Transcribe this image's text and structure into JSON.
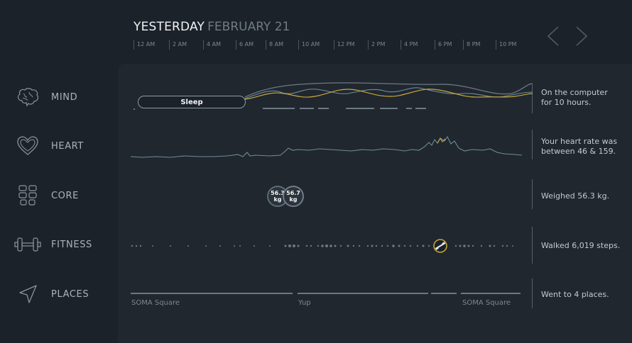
{
  "header": {
    "day_label": "YESTERDAY",
    "date_label": "FEBRUARY 21",
    "hours": [
      "12 AM",
      "2 AM",
      "4 AM",
      "6 AM",
      "8 AM",
      "10 AM",
      "12 PM",
      "2 PM",
      "4 PM",
      "6 PM",
      "8 PM",
      "10 PM"
    ]
  },
  "sidebar": {
    "items": [
      {
        "label": "MIND",
        "icon": "brain-icon"
      },
      {
        "label": "HEART",
        "icon": "heart-icon"
      },
      {
        "label": "CORE",
        "icon": "core-grid-icon"
      },
      {
        "label": "FITNESS",
        "icon": "dumbbell-icon"
      },
      {
        "label": "PLACES",
        "icon": "location-arrow-icon"
      }
    ]
  },
  "mind": {
    "sleep_label": "Sleep",
    "summary_line1": "On the computer",
    "summary_line2": "for 10 hours."
  },
  "heart": {
    "summary_line1": "Your heart rate was",
    "summary_line2": "between 46 & 159."
  },
  "core": {
    "weights": [
      {
        "value": "56.3",
        "unit": "kg"
      },
      {
        "value": "56.7",
        "unit": "kg"
      }
    ],
    "summary": "Weighed 56.3 kg."
  },
  "fitness": {
    "summary": "Walked 6,019 steps."
  },
  "places": {
    "labels": [
      "SOMA Square",
      "Yup",
      "SOMA Square"
    ],
    "summary": "Went to 4 places."
  },
  "colors": {
    "background": "#1c222a",
    "panel": "#20272f",
    "accent_yellow": "#c9a43a",
    "line_grey": "#6c7882"
  }
}
